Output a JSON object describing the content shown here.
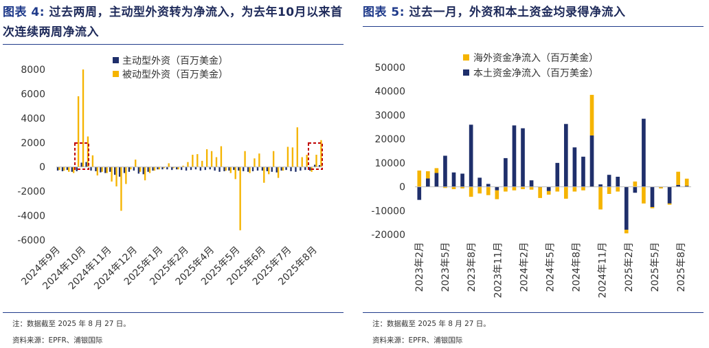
{
  "panels": [
    {
      "title_label": "图表 4:",
      "title_text": "过去两周，主动型外资转为净流入，为去年10月以来首次连续两周净流入",
      "note": "注：数据截至 2025 年 8 月 27 日。",
      "source": "资料来源：EPFR、浦银国际"
    },
    {
      "title_label": "图表 5:",
      "title_text": "过去一月，外资和本土资金均录得净流入",
      "note": "注：数据截至 2025 年 8 月 27 日。",
      "source": "资料来源：EPFR、浦银国际"
    }
  ],
  "chart_data": [
    {
      "type": "bar",
      "ylim": [
        -6000,
        8000
      ],
      "yticks": [
        8000,
        6000,
        4000,
        2000,
        0,
        -2000,
        -4000,
        -6000
      ],
      "xticklabels": [
        "2024年9月",
        "2024年10月",
        "2024年11月",
        "2024年12月",
        "2025年1月",
        "2025年2月",
        "2025年4月",
        "2025年5月",
        "2025年6月",
        "2025年7月",
        "2025年8月"
      ],
      "legend_position": "top-center",
      "highlight": "dashed red boxes around 2024年10月 and latest two weeks",
      "series": [
        {
          "name": "主动型外资（百万美金）",
          "color": "#1f2f6b",
          "values": [
            -300,
            -350,
            -250,
            -400,
            -350,
            350,
            400,
            -300,
            -350,
            -450,
            -500,
            -400,
            -650,
            -800,
            -500,
            -400,
            -300,
            -550,
            -600,
            -400,
            -300,
            -200,
            -200,
            -200,
            -250,
            -200,
            -250,
            -300,
            -250,
            -200,
            -300,
            -250,
            -200,
            -300,
            -400,
            -350,
            -300,
            -250,
            -300,
            -350,
            -400,
            -350,
            -300,
            -300,
            -350,
            -400,
            -450,
            -300,
            -250,
            -350,
            -400,
            -300,
            -250,
            -300,
            180,
            150
          ]
        },
        {
          "name": "被动型外资（百万美金）",
          "color": "#f5b400",
          "values": [
            -250,
            -300,
            -400,
            -500,
            5800,
            8000,
            2500,
            950,
            -700,
            -400,
            -500,
            -1200,
            -1600,
            -3600,
            -1400,
            -200,
            600,
            -400,
            -1100,
            -500,
            -300,
            -200,
            -100,
            300,
            -100,
            -200,
            100,
            400,
            1000,
            1050,
            500,
            1450,
            1300,
            800,
            1700,
            -300,
            -500,
            -1000,
            -5200,
            1300,
            -500,
            700,
            1100,
            -1300,
            -600,
            1300,
            -900,
            -300,
            1650,
            1600,
            3250,
            800,
            1000,
            -400,
            1000,
            2200
          ]
        }
      ]
    },
    {
      "type": "bar",
      "stacked": true,
      "ylim": [
        -20000,
        50000
      ],
      "yticks": [
        50000,
        40000,
        30000,
        20000,
        10000,
        0,
        -10000,
        -20000
      ],
      "xticklabels": [
        "2023年2月",
        "2023年5月",
        "2023年8月",
        "2023年11月",
        "2024年2月",
        "2024年5月",
        "2024年8月",
        "2024年11月",
        "2025年2月",
        "2025年5月",
        "2025年8月"
      ],
      "legend_position": "top-center",
      "series": [
        {
          "name": "海外资金净流入（百万美金）",
          "color": "#f5b400",
          "values": [
            6800,
            3000,
            2000,
            -500,
            -1000,
            -700,
            -4200,
            -2800,
            -3500,
            -3700,
            -2000,
            -1500,
            -1000,
            -1200,
            -4500,
            -1500,
            -2000,
            -5000,
            -2000,
            -1500,
            17000,
            -9500,
            -3000,
            -2000,
            -1500,
            2200,
            -7000,
            -500,
            -500,
            -500,
            5500,
            3000
          ]
        },
        {
          "name": "本土资金净流入（百万美金）",
          "color": "#1f2f6b",
          "values": [
            -5500,
            3500,
            5800,
            13000,
            6000,
            5500,
            26000,
            3800,
            1200,
            -1500,
            12000,
            25700,
            24500,
            2700,
            -200,
            -1800,
            10000,
            26300,
            16500,
            12600,
            21500,
            1000,
            5000,
            4200,
            -18000,
            -2500,
            28500,
            -8500,
            -200,
            -7000,
            800,
            400
          ]
        }
      ]
    }
  ]
}
